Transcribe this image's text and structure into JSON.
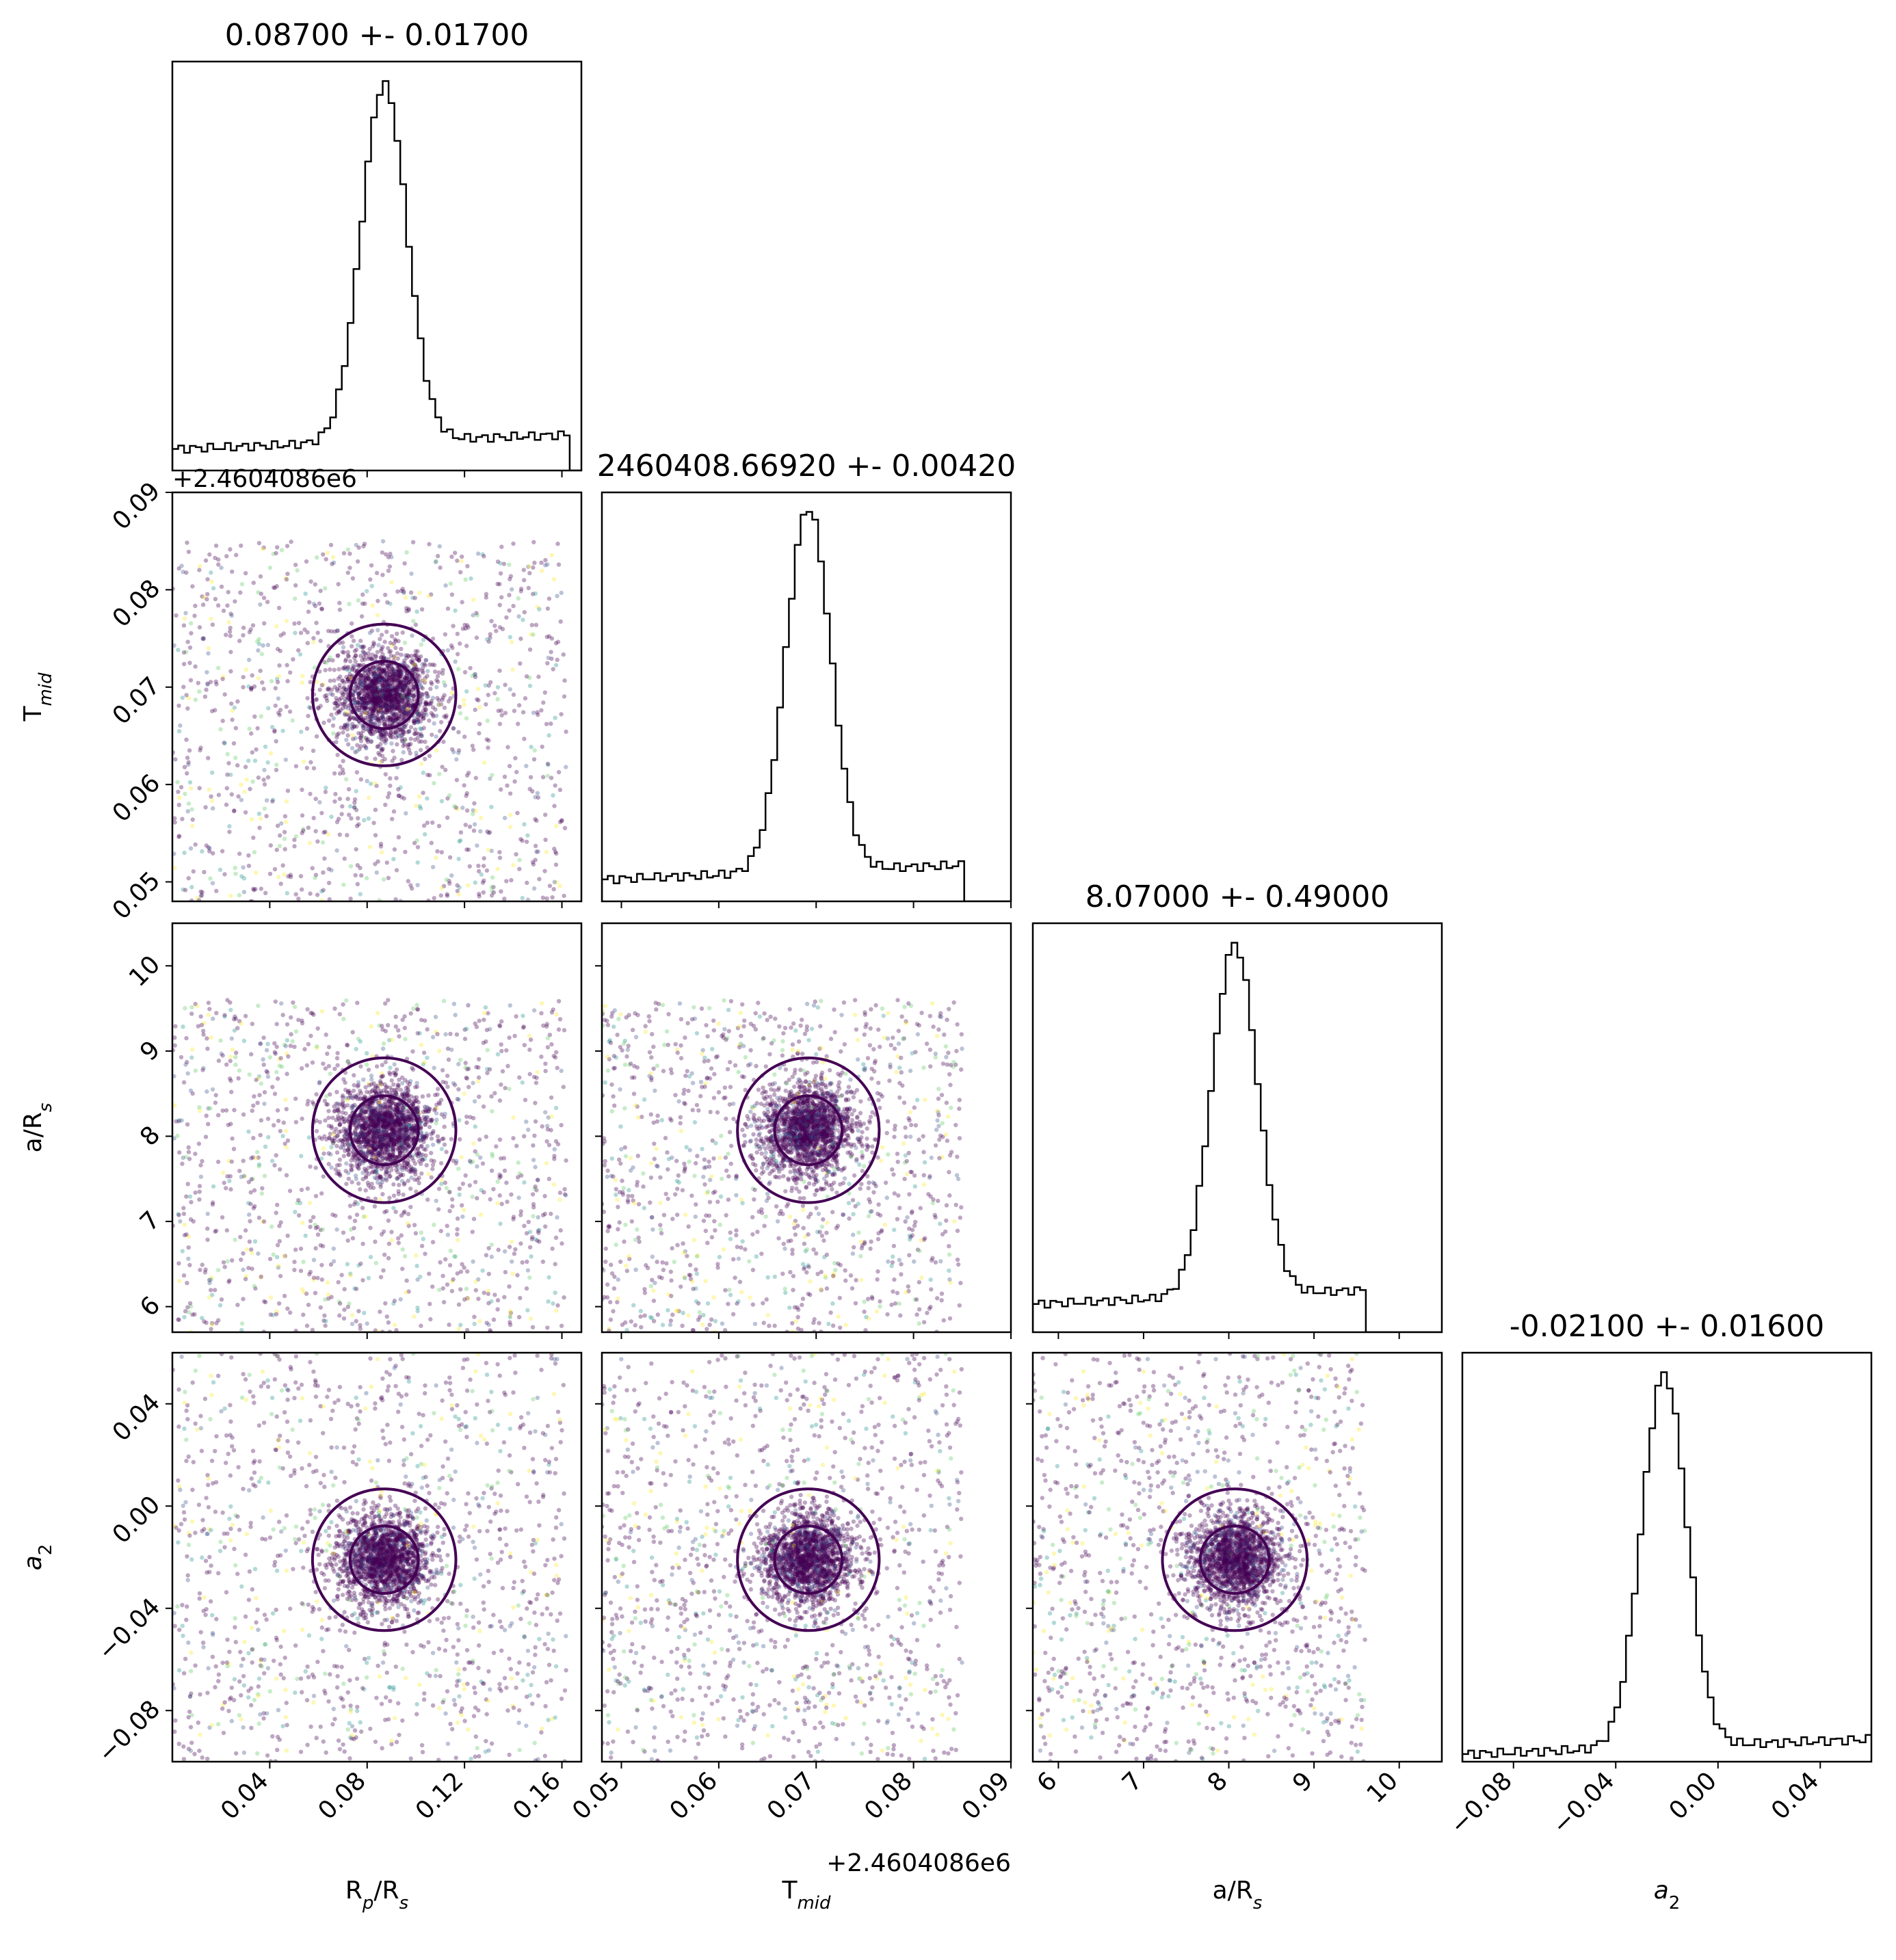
{
  "colors": {
    "scatter_colormap": [
      "#440154",
      "#3b528b",
      "#21918c",
      "#5ec962",
      "#fde725"
    ],
    "contour": "#440154",
    "histogram": "#000000"
  },
  "chart_data": {
    "type": "scatter",
    "variant": "corner-plot",
    "parameters": [
      {
        "key": "rp",
        "label_main": "R",
        "label_sub1": "p",
        "label_mid": "/R",
        "label_sub2": "s",
        "title": "0.08700 +- 0.01700",
        "median": 0.087,
        "sigma": 0.017,
        "range": [
          0.0,
          0.168
        ],
        "ticks": [
          0.04,
          0.08,
          0.12,
          0.16
        ],
        "tick_labels": [
          "0.04",
          "0.08",
          "0.12",
          "0.16"
        ],
        "sample_range": [
          0.0,
          0.162
        ],
        "hist_baseline": 0.06
      },
      {
        "key": "tmid",
        "label_main": "T",
        "label_sub1": "",
        "label_mid": "",
        "label_sub2": "mid",
        "title": "2460408.66920 +- 0.00420",
        "offset_text": "+2.4604086e6",
        "median": 0.0692,
        "sigma": 0.0042,
        "range": [
          0.048,
          0.09
        ],
        "ticks": [
          0.05,
          0.06,
          0.07,
          0.08,
          0.09
        ],
        "tick_labels": [
          "0.05",
          "0.06",
          "0.07",
          "0.08",
          "0.09"
        ],
        "sample_range": [
          0.048,
          0.085
        ],
        "hist_baseline": 0.06
      },
      {
        "key": "ars",
        "label_main": "a/R",
        "label_sub1": "",
        "label_mid": "",
        "label_sub2": "s",
        "title": "8.07000 +- 0.49000",
        "median": 8.07,
        "sigma": 0.49,
        "range": [
          5.7,
          10.5
        ],
        "ticks": [
          6,
          7,
          8,
          9,
          10
        ],
        "tick_labels": [
          "6",
          "7",
          "8",
          "9",
          "10"
        ],
        "sample_range": [
          5.7,
          9.6
        ],
        "hist_baseline": 0.08
      },
      {
        "key": "a2",
        "label_main": "a",
        "label_sub1": "",
        "label_mid": "",
        "label_sub2": "2",
        "label_italic": true,
        "title": "-0.02100 +- 0.01600",
        "median": -0.021,
        "sigma": 0.016,
        "range": [
          -0.1,
          0.06
        ],
        "ticks": [
          -0.08,
          -0.04,
          0.0,
          0.04
        ],
        "tick_labels": [
          "−0.08",
          "−0.04",
          "0.00",
          "0.04"
        ],
        "sample_range": [
          -0.1,
          0.06
        ],
        "hist_baseline": 0.02
      }
    ],
    "contour_levels": [
      "1-sigma",
      "2-sigma"
    ],
    "scatter_points_per_panel": 2800,
    "grid": false,
    "legend": "none"
  }
}
